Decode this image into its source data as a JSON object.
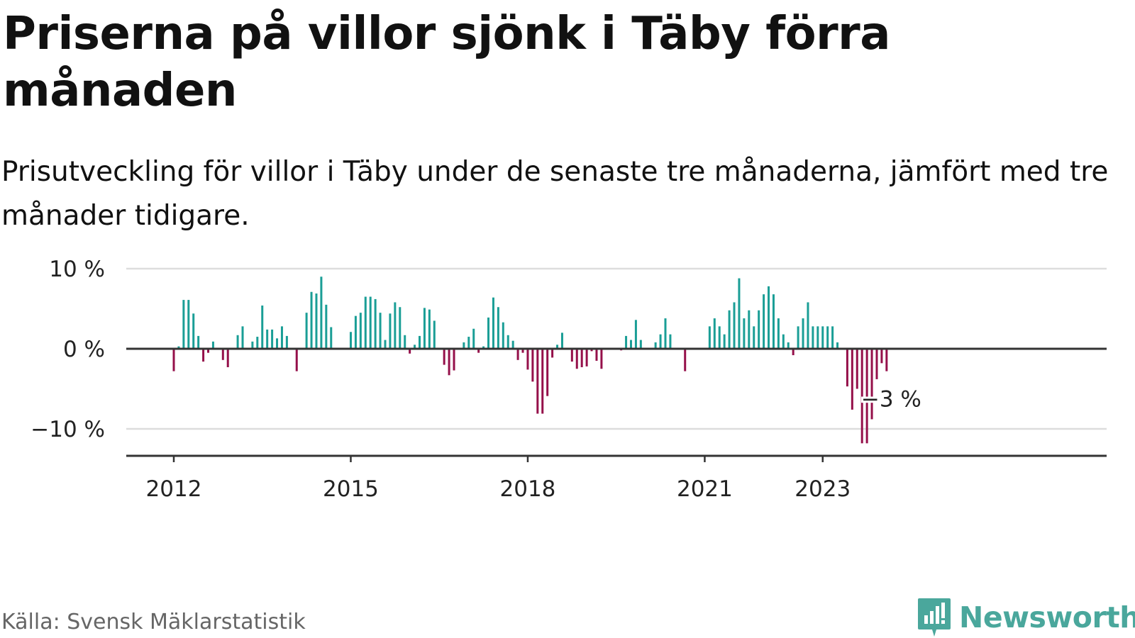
{
  "title": "Priserna på villor sjönk i Täby förra månaden",
  "subtitle": "Prisutveckling för villor i Täby under de senaste tre månaderna, jämfört med tre månader tidigare.",
  "source": "Källa: Svensk Mäklarstatistik",
  "brand": "Newsworthy",
  "colors": {
    "positive": "#1a9e96",
    "negative": "#95104a",
    "axis": "#333333",
    "grid": "#dddddd",
    "brand": "#4aa79c"
  },
  "chart_data": {
    "type": "bar",
    "title": "Priserna på villor sjönk i Täby förra månaden",
    "subtitle": "Prisutveckling för villor i Täby under de senaste tre månaderna, jämfört med tre månader tidigare.",
    "xlabel": "",
    "ylabel": "",
    "x_start": "2012-01",
    "unit": "%",
    "ylim": [
      -14,
      10
    ],
    "y_ticks": [
      10,
      0,
      -10
    ],
    "y_tick_labels": [
      "10 %",
      "0 %",
      "−10 %"
    ],
    "x_ticks": [
      "2012",
      "2015",
      "2018",
      "2021",
      "2023"
    ],
    "grid": true,
    "annotation": {
      "label": "−3 %",
      "target": "last"
    },
    "values": [
      -2.8,
      0.3,
      6.1,
      6.1,
      4.4,
      1.6,
      -1.6,
      -0.5,
      0.9,
      0,
      -1.4,
      -2.3,
      0,
      1.7,
      2.8,
      0,
      0.9,
      1.5,
      5.4,
      2.4,
      2.4,
      1.3,
      2.8,
      1.6,
      0,
      -2.8,
      0,
      4.5,
      7.1,
      6.9,
      9,
      5.5,
      2.7,
      0,
      0,
      0,
      2.1,
      4.1,
      4.5,
      6.5,
      6.5,
      6.2,
      4.5,
      1.1,
      4.4,
      5.8,
      5.2,
      1.7,
      -0.6,
      0.5,
      1.6,
      5.1,
      4.9,
      3.5,
      0,
      -2,
      -3.3,
      -2.7,
      0,
      0.8,
      1.5,
      2.5,
      -0.5,
      0.3,
      3.9,
      6.4,
      5.2,
      3.3,
      1.7,
      1,
      -1.4,
      -0.5,
      -2.6,
      -4.1,
      -8.1,
      -8.1,
      -5.9,
      -1.1,
      0.5,
      2,
      0,
      -1.6,
      -2.5,
      -2.3,
      -2.2,
      -0.3,
      -1.5,
      -2.5,
      0,
      0,
      0,
      -0.2,
      1.6,
      1.1,
      3.6,
      1.1,
      0,
      0,
      0.8,
      1.8,
      3.8,
      1.8,
      0,
      0,
      -2.8,
      0,
      0,
      0,
      0,
      2.8,
      3.8,
      2.8,
      1.8,
      4.8,
      5.8,
      8.8,
      3.8,
      4.8,
      2.8,
      4.8,
      6.8,
      7.8,
      6.8,
      3.8,
      1.8,
      0.8,
      -0.8,
      2.8,
      3.8,
      5.8,
      2.8,
      2.8,
      2.8,
      2.8,
      2.8,
      0.8,
      0,
      -4.7,
      -7.6,
      -5,
      -11.8,
      -11.8,
      -8.8,
      -3.8,
      -1.8,
      -2.8
    ]
  }
}
